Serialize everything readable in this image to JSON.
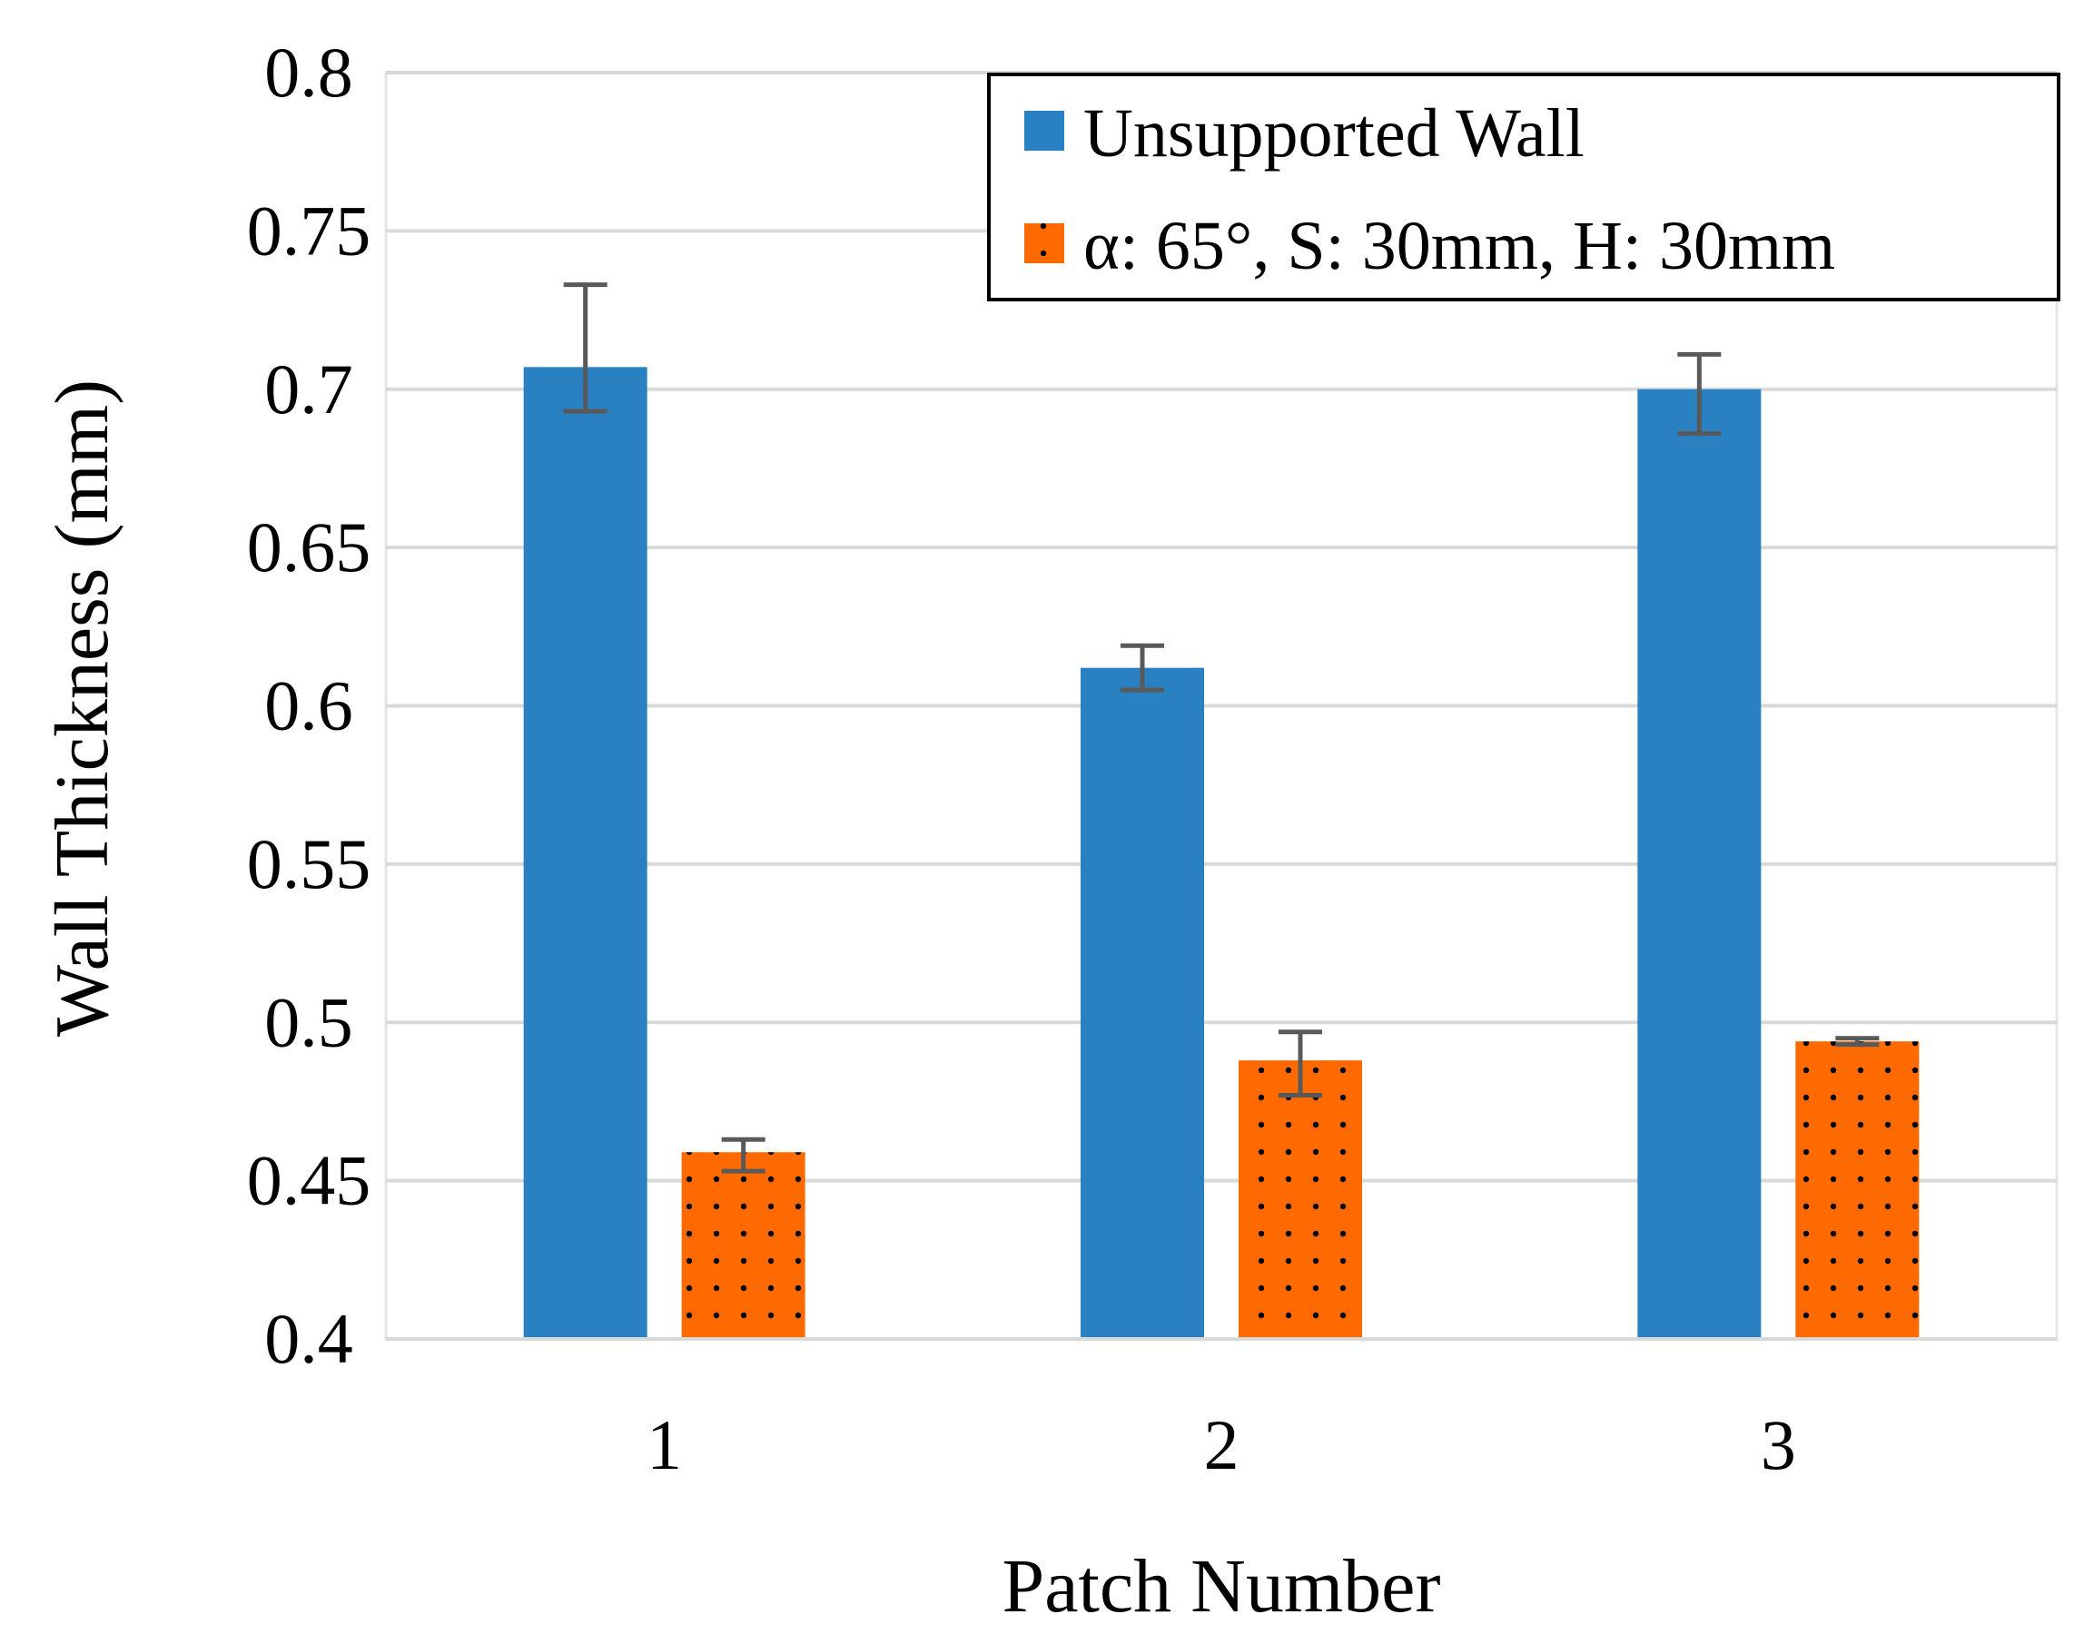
{
  "chart_data": {
    "type": "bar",
    "title": "",
    "xlabel": "Patch Number",
    "ylabel": "Wall Thickness (mm)",
    "categories": [
      "1",
      "2",
      "3"
    ],
    "ylim": [
      0.4,
      0.8
    ],
    "yticks": [
      {
        "value": 0.4,
        "label": "0.4"
      },
      {
        "value": 0.45,
        "label": "0.45"
      },
      {
        "value": 0.5,
        "label": "0.5"
      },
      {
        "value": 0.55,
        "label": "0.55"
      },
      {
        "value": 0.6,
        "label": "0.6"
      },
      {
        "value": 0.65,
        "label": "0.65"
      },
      {
        "value": 0.7,
        "label": "0.7"
      },
      {
        "value": 0.75,
        "label": "0.75"
      },
      {
        "value": 0.8,
        "label": "0.8"
      }
    ],
    "grid": true,
    "legend_position": "top-right",
    "series": [
      {
        "name": "Unsupported Wall",
        "color": "#2a81c1",
        "pattern": "solid",
        "values": [
          0.707,
          0.612,
          0.7
        ],
        "error_low": [
          0.693,
          0.605,
          0.686
        ],
        "error_high": [
          0.733,
          0.619,
          0.711
        ]
      },
      {
        "name": "α: 65°, S: 30mm, H: 30mm",
        "color": "#ff6a00",
        "pattern": "dots",
        "values": [
          0.459,
          0.488,
          0.494
        ],
        "error_low": [
          0.453,
          0.477,
          0.493
        ],
        "error_high": [
          0.463,
          0.497,
          0.495
        ]
      }
    ]
  }
}
